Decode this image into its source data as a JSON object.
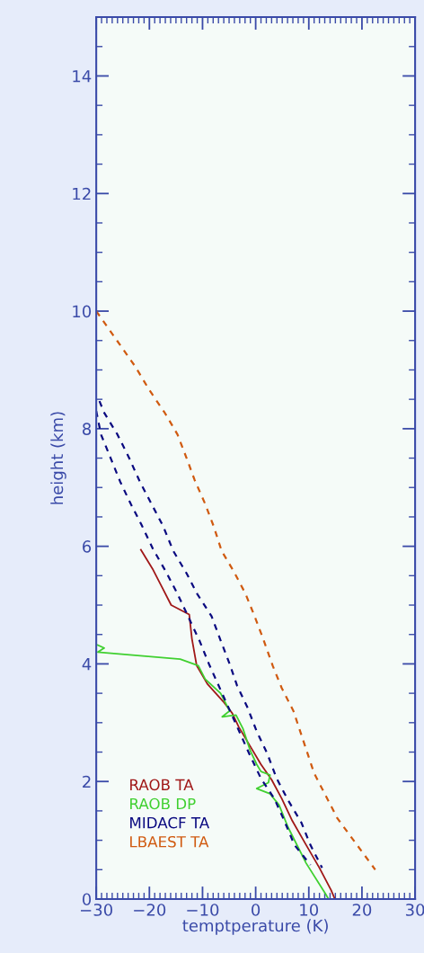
{
  "chart_data": {
    "type": "line",
    "xlabel": "temptperature (K)",
    "ylabel": "height (km)",
    "xlim": [
      -30,
      30
    ],
    "ylim": [
      0,
      15
    ],
    "xticks": [
      -30,
      -20,
      -10,
      0,
      10,
      20,
      30
    ],
    "yticks": [
      0,
      2,
      4,
      6,
      8,
      10,
      12,
      14
    ],
    "grid": false,
    "legend": "bottom left",
    "series": [
      {
        "name": "RAOB TA",
        "color": "#a01818",
        "line_style": "solid",
        "x": [
          -21.6,
          -19.3,
          -17.6,
          -15.9,
          -12.5,
          -12.0,
          -11.1,
          -9.1,
          -6.1,
          -4.4,
          -3.2,
          -1.5,
          1.0,
          3.0,
          4.9,
          6.9,
          9.5,
          12.0,
          14.2,
          14.9
        ],
        "values": [
          5.94,
          5.6,
          5.3,
          5.0,
          4.84,
          4.43,
          3.97,
          3.66,
          3.36,
          3.16,
          2.93,
          2.67,
          2.29,
          2.03,
          1.71,
          1.33,
          0.92,
          0.53,
          0.15,
          0
        ]
      },
      {
        "name": "RAOB DP",
        "color": "#40d030",
        "line_style": "solid",
        "x": [
          -29.7,
          -28.5,
          -29.7,
          -14.2,
          -10.8,
          -9.5,
          -6.6,
          -4.9,
          -6.3,
          -3.7,
          -2.4,
          -1.0,
          0.2,
          1.0,
          2.7,
          2.4,
          0.2,
          2.7,
          4.4,
          6.1,
          9.5,
          13.2,
          13.7
        ],
        "values": [
          4.32,
          4.27,
          4.2,
          4.08,
          3.97,
          3.74,
          3.5,
          3.2,
          3.1,
          3.13,
          2.9,
          2.52,
          2.29,
          2.17,
          2.11,
          1.98,
          1.88,
          1.79,
          1.6,
          1.22,
          0.61,
          0.08,
          0
        ]
      },
      {
        "name": "MIDACF TA",
        "color": "#0a0a80",
        "line_style": "dashed",
        "x": [
          -29.4,
          -28.5,
          -26.0,
          -23.8,
          -21.8,
          -19.6,
          -17.4,
          -15.5,
          -13.0,
          -11.0,
          -8.3,
          -6.6,
          -4.9,
          -3.5,
          -1.5,
          0.2,
          2.2,
          3.9,
          6.1,
          8.6,
          10.3,
          12.5
        ],
        "values": [
          8.47,
          8.27,
          7.9,
          7.5,
          7.1,
          6.72,
          6.34,
          5.92,
          5.54,
          5.19,
          4.81,
          4.4,
          4.0,
          3.63,
          3.25,
          2.85,
          2.47,
          2.06,
          1.68,
          1.3,
          0.92,
          0.53
        ]
      },
      {
        "color": "#0a0a80",
        "line_style": "dashed",
        "x": [
          -30.0,
          -29.1,
          -27.2,
          -25.5,
          -23.5,
          -21.5,
          -19.3,
          -16.9,
          -14.7,
          -10.5,
          -8.8,
          -1.2,
          1.0,
          3.5,
          5.2,
          7.3,
          10.3
        ],
        "values": [
          8.3,
          7.9,
          7.48,
          7.1,
          6.72,
          6.37,
          5.95,
          5.57,
          5.19,
          4.38,
          4.0,
          2.47,
          2.05,
          1.71,
          1.37,
          0.92,
          0.58
        ]
      },
      {
        "name": "LBAEST TA",
        "color": "#d05a10",
        "line_style": "dashed",
        "x": [
          -30.0,
          -22.6,
          -20.1,
          -17.1,
          -14.7,
          -13.0,
          -11.5,
          -9.5,
          -7.9,
          -6.4,
          -4.1,
          -1.9,
          -0.2,
          1.4,
          3.2,
          4.9,
          7.1,
          11.0,
          15.4,
          22.5
        ],
        "values": [
          10.0,
          9.05,
          8.67,
          8.27,
          7.9,
          7.5,
          7.13,
          6.72,
          6.34,
          5.92,
          5.57,
          5.19,
          4.81,
          4.43,
          3.97,
          3.59,
          3.2,
          2.14,
          1.37,
          0.5
        ]
      }
    ]
  }
}
